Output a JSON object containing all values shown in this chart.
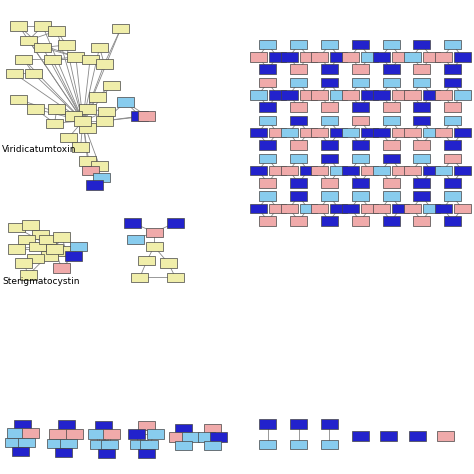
{
  "background": "#ffffff",
  "node_colors": {
    "yellow": "#f0eeaa",
    "blue": "#2222cc",
    "lightblue": "#88ccee",
    "pink": "#f0aaaa"
  },
  "edge_color": "#888888",
  "text_color": "#000000",
  "label_viridicatumtoxin": "Viridicatumtoxin",
  "label_sterigmatocystin": "Sterigmatocystin",
  "label_fontsize": 6.5,
  "nw": 0.032,
  "nh": 0.016
}
